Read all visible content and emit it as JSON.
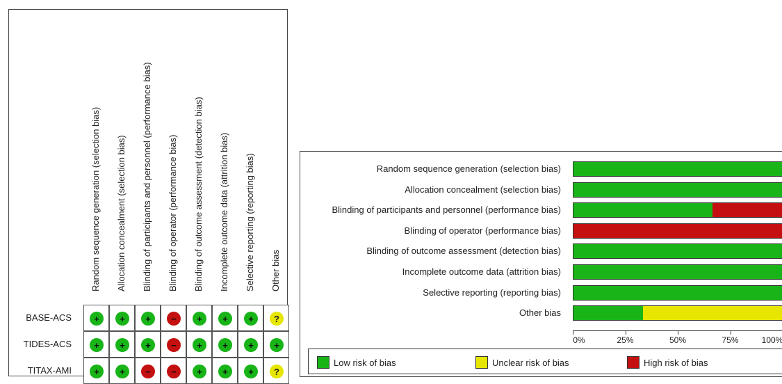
{
  "colors": {
    "low": "#18b418",
    "unclear": "#e6e600",
    "high": "#c41010"
  },
  "symbols": {
    "low": "+",
    "high": "−",
    "unclear": "?"
  },
  "domains": [
    "Random sequence generation (selection bias)",
    "Allocation concealment (selection bias)",
    "Blinding of participants and personnel (performance bias)",
    "Blinding of operator (performance bias)",
    "Blinding of outcome assessment (detection bias)",
    "Incomplete outcome data (attrition bias)",
    "Selective reporting (reporting bias)",
    "Other bias"
  ],
  "chart_data": [
    {
      "type": "table",
      "studies": [
        "BASE-ACS",
        "TIDES-ACS",
        "TITAX-AMI"
      ],
      "judgements": [
        [
          "low",
          "low",
          "low",
          "high",
          "low",
          "low",
          "low",
          "unclear"
        ],
        [
          "low",
          "low",
          "low",
          "high",
          "low",
          "low",
          "low",
          "low"
        ],
        [
          "low",
          "low",
          "high",
          "high",
          "low",
          "low",
          "low",
          "unclear"
        ]
      ]
    },
    {
      "type": "bar",
      "orientation": "horizontal-stacked",
      "units": "percent of studies",
      "series": [
        {
          "name": "Low risk of bias",
          "values": [
            100,
            100,
            66.7,
            0,
            100,
            100,
            100,
            33.3
          ]
        },
        {
          "name": "Unclear risk of bias",
          "values": [
            0,
            0,
            0,
            0,
            0,
            0,
            0,
            66.7
          ]
        },
        {
          "name": "High risk of bias",
          "values": [
            0,
            0,
            33.3,
            100,
            0,
            0,
            0,
            0
          ]
        }
      ],
      "xticks": [
        "0%",
        "25%",
        "50%",
        "75%",
        "100%"
      ],
      "xlim": [
        0,
        100
      ]
    }
  ]
}
